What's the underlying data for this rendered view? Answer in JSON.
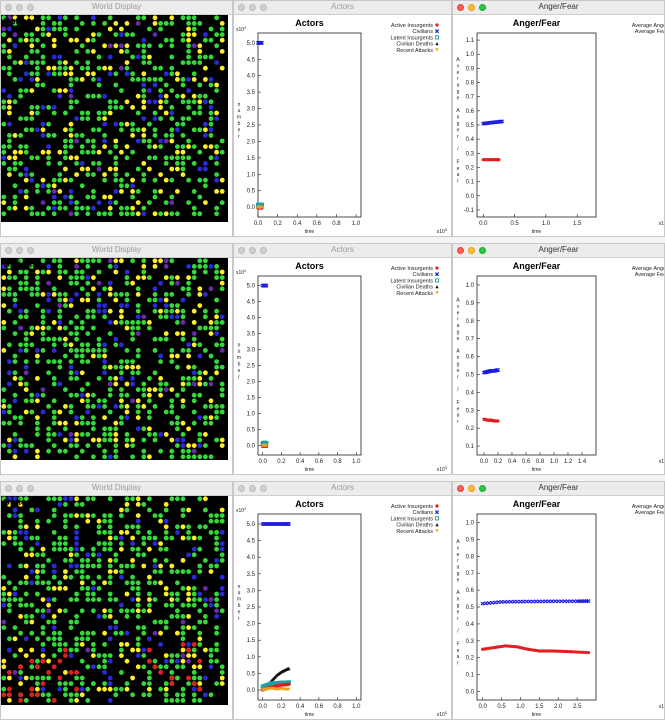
{
  "world": {
    "title": "World Display",
    "options_label": "Options"
  },
  "actors": {
    "title": "Actors",
    "chart_title": "Actors",
    "xlabel": "time",
    "ylabel": "number",
    "y_exponent": "x10",
    "y_exponent_power": "2",
    "x_exponent": "x10",
    "x_exponent_power": "3",
    "legend": [
      "Active Insurgents",
      "Civilians",
      "Latent Insurgents",
      "Civilian Deaths",
      "Recent Attacks"
    ]
  },
  "anger": {
    "title": "Anger/Fear",
    "chart_title": "Anger/Fear",
    "xlabel": "time",
    "ylabel": "Average Anger / Fear",
    "legend": [
      "Average Anger",
      "Average Fear"
    ],
    "x_exponent_partial": "x1"
  },
  "colors": {
    "civilian": "#1f1fe0",
    "active": "#e01f1f",
    "latent": "#20a0a0",
    "deaths": "#111111",
    "attacks": "#f0a020",
    "world_green": "#35d83a",
    "world_yellow": "#ffee2a",
    "world_blue": "#2a2ad8",
    "world_purple": "#6a2aa8",
    "world_red": "#e02020"
  },
  "chart_data": [
    {
      "type": "line",
      "panel": "actors",
      "row": 1,
      "xlim": [
        0,
        1.05
      ],
      "ylim": [
        -0.3,
        5.3
      ],
      "x_ticks": [
        "0.0",
        "0.2",
        "0.4",
        "0.6",
        "0.8",
        "1.0"
      ],
      "y_ticks": [
        "0.0",
        "0.5",
        "1.0",
        "1.5",
        "2.0",
        "2.5",
        "3.0",
        "3.5",
        "4.0",
        "4.5",
        "5.0"
      ],
      "series": [
        {
          "name": "Civilians",
          "x": [
            0,
            0.02,
            0.04
          ],
          "y": [
            5.0,
            5.0,
            5.0
          ]
        },
        {
          "name": "Latent Insurgents",
          "x": [
            0,
            0.02,
            0.04
          ],
          "y": [
            0.07,
            0.08,
            0.07
          ]
        },
        {
          "name": "Active Insurgents",
          "x": [
            0,
            0.02,
            0.04
          ],
          "y": [
            -0.03,
            -0.02,
            -0.03
          ]
        },
        {
          "name": "Recent Attacks",
          "x": [
            0,
            0.02,
            0.04
          ],
          "y": [
            -0.01,
            0,
            -0.01
          ]
        }
      ]
    },
    {
      "type": "line",
      "panel": "anger",
      "row": 1,
      "xlim": [
        -0.1,
        1.8
      ],
      "ylim": [
        -0.15,
        1.15
      ],
      "x_ticks": [
        "0.0",
        "0.5",
        "1.0",
        "1.5"
      ],
      "y_ticks": [
        "-0.1",
        "0.0",
        "0.1",
        "0.2",
        "0.3",
        "0.4",
        "0.5",
        "0.6",
        "0.7",
        "0.8",
        "0.9",
        "1.0",
        "1.1"
      ],
      "series": [
        {
          "name": "Average Anger",
          "x": [
            0,
            0.1,
            0.2,
            0.3
          ],
          "y": [
            0.51,
            0.515,
            0.52,
            0.525
          ]
        },
        {
          "name": "Average Fear",
          "x": [
            0,
            0.1,
            0.2,
            0.25
          ],
          "y": [
            0.255,
            0.255,
            0.255,
            0.255
          ]
        }
      ]
    },
    {
      "type": "line",
      "panel": "actors",
      "row": 2,
      "xlim": [
        -0.05,
        1.05
      ],
      "ylim": [
        -0.3,
        5.3
      ],
      "x_ticks": [
        "0.0",
        "0.2",
        "0.4",
        "0.6",
        "0.8",
        "1.0"
      ],
      "y_ticks": [
        "0.0",
        "0.5",
        "1.0",
        "1.5",
        "2.0",
        "2.5",
        "3.0",
        "3.5",
        "4.0",
        "4.5",
        "5.0"
      ],
      "series": [
        {
          "name": "Civilians",
          "x": [
            0,
            0.02,
            0.04
          ],
          "y": [
            5.0,
            5.0,
            5.0
          ]
        },
        {
          "name": "Latent Insurgents",
          "x": [
            0,
            0.02,
            0.04
          ],
          "y": [
            0.07,
            0.08,
            0.07
          ]
        },
        {
          "name": "Active Insurgents",
          "x": [
            0,
            0.02,
            0.04
          ],
          "y": [
            -0.03,
            -0.02,
            -0.03
          ]
        },
        {
          "name": "Recent Attacks",
          "x": [
            0,
            0.02,
            0.04
          ],
          "y": [
            -0.01,
            0,
            -0.01
          ]
        }
      ]
    },
    {
      "type": "line",
      "panel": "anger",
      "row": 2,
      "xlim": [
        -0.1,
        1.6
      ],
      "ylim": [
        0.05,
        1.05
      ],
      "x_ticks": [
        "0.0",
        "0.2",
        "0.4",
        "0.6",
        "0.8",
        "1.0",
        "1.2",
        "1.4"
      ],
      "y_ticks": [
        "0.1",
        "0.2",
        "0.3",
        "0.4",
        "0.5",
        "0.6",
        "0.7",
        "0.8",
        "0.9",
        "1.0"
      ],
      "series": [
        {
          "name": "Average Anger",
          "x": [
            0,
            0.05,
            0.1,
            0.15,
            0.2
          ],
          "y": [
            0.51,
            0.515,
            0.52,
            0.52,
            0.525
          ]
        },
        {
          "name": "Average Fear",
          "x": [
            0,
            0.05,
            0.1,
            0.15,
            0.2
          ],
          "y": [
            0.25,
            0.245,
            0.245,
            0.24,
            0.24
          ]
        }
      ]
    },
    {
      "type": "line",
      "panel": "actors",
      "row": 3,
      "xlim": [
        -0.05,
        1.05
      ],
      "ylim": [
        -0.3,
        5.3
      ],
      "x_ticks": [
        "0.0",
        "0.2",
        "0.4",
        "0.6",
        "0.8",
        "1.0"
      ],
      "y_ticks": [
        "0.0",
        "0.5",
        "1.0",
        "1.5",
        "2.0",
        "2.5",
        "3.0",
        "3.5",
        "4.0",
        "4.5",
        "5.0"
      ],
      "series": [
        {
          "name": "Civilians",
          "x": [
            0,
            0.05,
            0.1,
            0.15,
            0.2,
            0.25,
            0.28
          ],
          "y": [
            5.0,
            5.0,
            5.0,
            5.0,
            5.0,
            5.0,
            5.0
          ]
        },
        {
          "name": "Civilian Deaths",
          "x": [
            0,
            0.05,
            0.1,
            0.15,
            0.2,
            0.25,
            0.28
          ],
          "y": [
            0.05,
            0.15,
            0.3,
            0.45,
            0.55,
            0.62,
            0.65
          ]
        },
        {
          "name": "Latent Insurgents",
          "x": [
            0,
            0.05,
            0.1,
            0.15,
            0.2,
            0.25,
            0.28
          ],
          "y": [
            0.1,
            0.15,
            0.2,
            0.2,
            0.22,
            0.22,
            0.23
          ]
        },
        {
          "name": "Active Insurgents",
          "x": [
            0,
            0.05,
            0.1,
            0.15,
            0.2,
            0.25,
            0.28
          ],
          "y": [
            0,
            0.05,
            0.1,
            0.12,
            0.15,
            0.16,
            0.17
          ]
        },
        {
          "name": "Recent Attacks",
          "x": [
            0,
            0.05,
            0.1,
            0.15,
            0.2,
            0.25,
            0.28
          ],
          "y": [
            0,
            0.03,
            0.05,
            0.02,
            0.04,
            0.02,
            0.03
          ]
        }
      ]
    },
    {
      "type": "line",
      "panel": "anger",
      "row": 3,
      "xlim": [
        -0.15,
        3.0
      ],
      "ylim": [
        -0.05,
        1.05
      ],
      "x_ticks": [
        "0.0",
        "0.5",
        "1.0",
        "1.5",
        "2.0",
        "2.5"
      ],
      "y_ticks": [
        "0.0",
        "0.1",
        "0.2",
        "0.3",
        "0.4",
        "0.5",
        "0.6",
        "0.7",
        "0.8",
        "0.9",
        "1.0"
      ],
      "series": [
        {
          "name": "Average Anger",
          "x": [
            0,
            0.5,
            1.0,
            1.5,
            2.0,
            2.5,
            2.8
          ],
          "y": [
            0.52,
            0.53,
            0.532,
            0.533,
            0.534,
            0.534,
            0.535
          ]
        },
        {
          "name": "Average Fear",
          "x": [
            0,
            0.3,
            0.6,
            0.9,
            1.2,
            1.5,
            1.8,
            2.1,
            2.4,
            2.8
          ],
          "y": [
            0.25,
            0.26,
            0.27,
            0.265,
            0.25,
            0.24,
            0.24,
            0.238,
            0.235,
            0.23
          ]
        }
      ]
    }
  ]
}
